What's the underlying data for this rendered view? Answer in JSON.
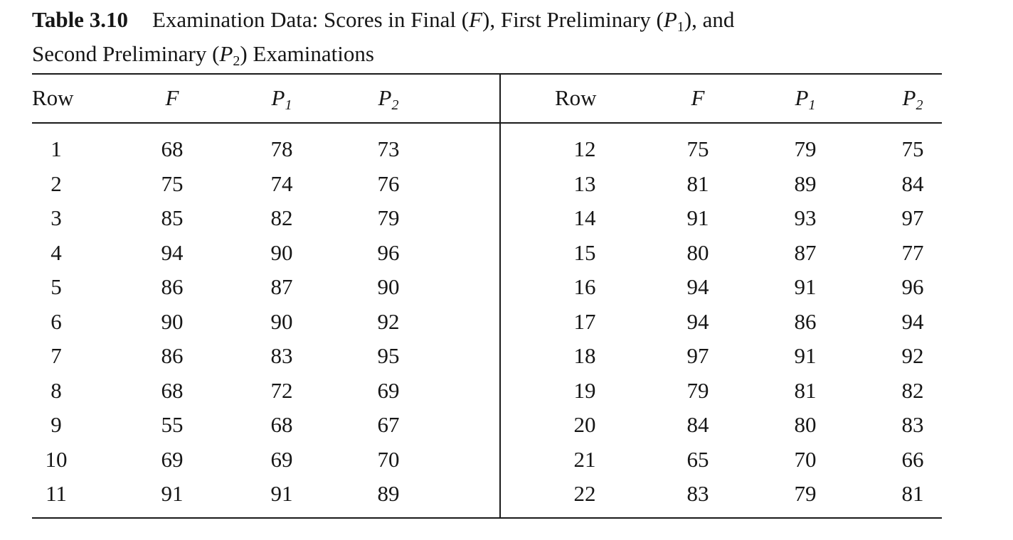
{
  "caption": {
    "label": "Table 3.10",
    "line1": "Examination Data: Scores in Final (F), First Preliminary (P1), and",
    "line2": "Second Preliminary (P2) Examinations"
  },
  "table": {
    "columns": [
      "Row",
      "F",
      "P1",
      "P2",
      "Row",
      "F",
      "P1",
      "P2"
    ],
    "rows": [
      [
        "1",
        "68",
        "78",
        "73",
        "12",
        "75",
        "79",
        "75"
      ],
      [
        "2",
        "75",
        "74",
        "76",
        "13",
        "81",
        "89",
        "84"
      ],
      [
        "3",
        "85",
        "82",
        "79",
        "14",
        "91",
        "93",
        "97"
      ],
      [
        "4",
        "94",
        "90",
        "96",
        "15",
        "80",
        "87",
        "77"
      ],
      [
        "5",
        "86",
        "87",
        "90",
        "16",
        "94",
        "91",
        "96"
      ],
      [
        "6",
        "90",
        "90",
        "92",
        "17",
        "94",
        "86",
        "94"
      ],
      [
        "7",
        "86",
        "83",
        "95",
        "18",
        "97",
        "91",
        "92"
      ],
      [
        "8",
        "68",
        "72",
        "69",
        "19",
        "79",
        "81",
        "82"
      ],
      [
        "9",
        "55",
        "68",
        "67",
        "20",
        "84",
        "80",
        "83"
      ],
      [
        "10",
        "69",
        "69",
        "70",
        "21",
        "65",
        "70",
        "66"
      ],
      [
        "11",
        "91",
        "91",
        "89",
        "22",
        "83",
        "79",
        "81"
      ]
    ]
  }
}
